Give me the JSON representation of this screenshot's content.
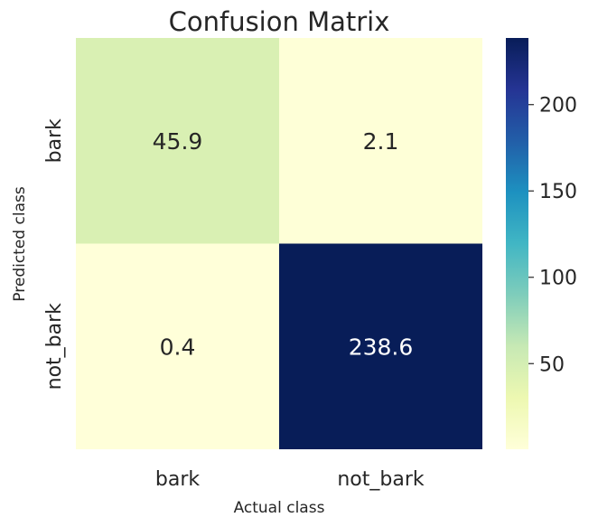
{
  "chart_data": {
    "type": "heatmap",
    "title": "Confusion Matrix",
    "xlabel": "Actual class",
    "ylabel": "Predicted class",
    "x_categories": [
      "bark",
      "not_bark"
    ],
    "y_categories": [
      "bark",
      "not_bark"
    ],
    "values": [
      [
        45.9,
        2.1
      ],
      [
        0.4,
        238.6
      ]
    ],
    "value_labels": [
      [
        "45.9",
        "2.1"
      ],
      [
        "0.4",
        "238.6"
      ]
    ],
    "colormap": "YlGnBu",
    "colorbar": {
      "range": [
        0.4,
        238.6
      ],
      "ticks": [
        50,
        100,
        150,
        200
      ],
      "tick_labels": [
        "50",
        "100",
        "150",
        "200"
      ]
    },
    "grid": false,
    "legend": "colorbar-right"
  }
}
